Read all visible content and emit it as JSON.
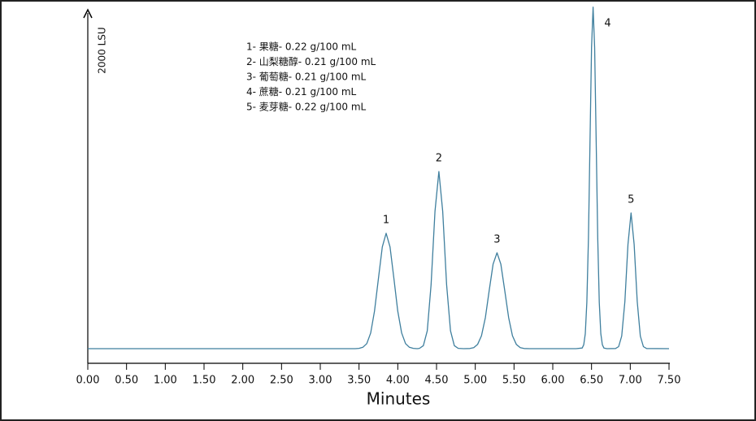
{
  "chart_data": {
    "type": "line",
    "y_label": "2000 LSU",
    "x_label": "Minutes",
    "notes": [
      "1- 果糖- 0.22 g/100 mL",
      "2- 山梨糖醇- 0.21 g/100 mL",
      "3- 葡萄糖- 0.21 g/100 mL",
      "4- 蔗糖- 0.21 g/100 mL",
      "5- 麦芽糖- 0.22 g/100 mL"
    ],
    "peak_labels": [
      "1",
      "2",
      "3",
      "4",
      "5"
    ],
    "x": [
      0,
      3.45,
      3.5,
      3.55,
      3.6,
      3.65,
      3.7,
      3.75,
      3.8,
      3.85,
      3.9,
      3.95,
      4.0,
      4.05,
      4.1,
      4.15,
      4.2,
      4.25,
      4.28,
      4.33,
      4.38,
      4.43,
      4.48,
      4.53,
      4.58,
      4.63,
      4.68,
      4.73,
      4.78,
      4.85,
      4.93,
      4.98,
      5.03,
      5.08,
      5.13,
      5.18,
      5.23,
      5.28,
      5.33,
      5.38,
      5.43,
      5.48,
      5.53,
      5.58,
      5.63,
      5.7,
      6.3,
      6.38,
      6.4,
      6.42,
      6.44,
      6.46,
      6.48,
      6.5,
      6.52,
      6.54,
      6.56,
      6.58,
      6.6,
      6.62,
      6.64,
      6.66,
      6.7,
      6.81,
      6.85,
      6.89,
      6.93,
      6.97,
      7.01,
      7.05,
      7.09,
      7.13,
      7.17,
      7.21,
      7.5
    ],
    "series": [
      {
        "color": "#3f7f9e",
        "values": [
          0,
          0,
          2,
          8,
          30,
          93,
          223,
          416,
          605,
          686,
          605,
          416,
          223,
          93,
          30,
          8,
          2,
          0,
          2,
          18,
          106,
          380,
          816,
          1053,
          816,
          380,
          106,
          18,
          2,
          0,
          1,
          6,
          25,
          77,
          185,
          346,
          503,
          570,
          503,
          346,
          185,
          77,
          25,
          6,
          1,
          0,
          0,
          4,
          23,
          89,
          275,
          659,
          1231,
          1791,
          2030,
          1791,
          1231,
          659,
          275,
          89,
          23,
          4,
          0,
          1,
          12,
          75,
          280,
          620,
          807,
          620,
          280,
          75,
          12,
          1,
          0
        ]
      }
    ],
    "xlim": [
      0,
      7.5
    ],
    "ylim": [
      0,
      2000
    ],
    "xticks": [
      {
        "value": 0,
        "label": "0.00"
      },
      {
        "value": 0.5,
        "label": "0.50"
      },
      {
        "value": 1,
        "label": "1.00"
      },
      {
        "value": 1.5,
        "label": "1.50"
      },
      {
        "value": 2,
        "label": "2.00"
      },
      {
        "value": 2.5,
        "label": "2.50"
      },
      {
        "value": 3,
        "label": "3.00"
      },
      {
        "value": 3.5,
        "label": "3.50"
      },
      {
        "value": 4,
        "label": "4.00"
      },
      {
        "value": 4.5,
        "label": "4.50"
      },
      {
        "value": 5,
        "label": "5.00"
      },
      {
        "value": 5.5,
        "label": "5.50"
      },
      {
        "value": 6,
        "label": "6.00"
      },
      {
        "value": 6.5,
        "label": "6.50"
      },
      {
        "value": 7,
        "label": "7.00"
      },
      {
        "value": 7.5,
        "label": "7.50"
      }
    ]
  }
}
